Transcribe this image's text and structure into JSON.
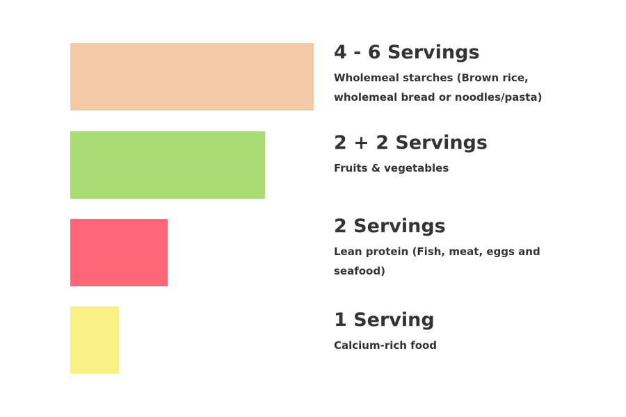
{
  "chart_data": {
    "type": "bar",
    "orientation": "horizontal",
    "colors": [
      "#F5CBA7",
      "#A9DC72",
      "#FF6677",
      "#F9F185"
    ],
    "categories": [
      "4 - 6 Servings",
      "2 + 2 Servings",
      "2 Servings",
      "1 Serving"
    ],
    "descriptions": [
      "Wholemeal starches (Brown rice, wholemeal bread or noodles/pasta)",
      "Fruits & vegetables",
      "Lean protein (Fish, meat, eggs and seafood)",
      "Calcium-rich food"
    ],
    "values": [
      5,
      4,
      2,
      1
    ],
    "xlim": [
      0,
      5
    ]
  }
}
